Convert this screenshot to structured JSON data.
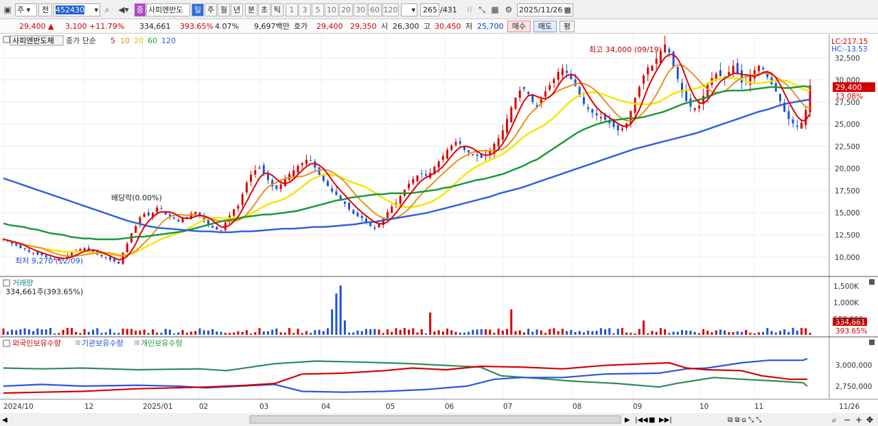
{
  "toolbar": {
    "market": "주",
    "type": "전",
    "code": "452430",
    "name": "사피엔반도",
    "name_badge": "종",
    "periods": [
      "일",
      "주",
      "월",
      "년",
      "분",
      "초",
      "틱"
    ],
    "counts": [
      "1",
      "3",
      "5",
      "10",
      "20",
      "30",
      "60",
      "120"
    ],
    "view_count": "265",
    "total_count": "/431",
    "date": "2025/11/26"
  },
  "quote": {
    "price": "29,400",
    "change": "3,100",
    "change_pct": "+11.79%",
    "volume": "334,661",
    "vol_ratio": "393.65%",
    "turnover": "4.07%",
    "amount": "9,697백만",
    "hoga_label": "호가",
    "ask": "29,400",
    "bid": "29,350",
    "open_label": "시",
    "open": "26,300",
    "high_label": "고",
    "high": "30,450",
    "low_label": "저",
    "low": "25,700",
    "buy": "매수",
    "sell": "매도",
    "eval": "평"
  },
  "price_panel": {
    "title": "사피엔반도체",
    "ma_label": "종가 단순",
    "ma": [
      "5",
      "10",
      "20",
      "60",
      "120"
    ],
    "lc": "LC:217.15",
    "hc": "HC:-13.53",
    "cur_price": "29,400",
    "cur_pct": "13.08%",
    "max_label": "최고 34,000 (09/19)",
    "min_label": "최저 9,270 (12/09)",
    "dividend": "배당락(0.00%)"
  },
  "vol_panel": {
    "title": "거래량",
    "subtitle": "334,661주(393.65%)",
    "cur": "334,661",
    "pct": "393.65%"
  },
  "own_panel": {
    "t1": "외국인보유수량",
    "t2": "기관보유수량",
    "t3": "개인보유수량"
  },
  "colors": {
    "ma5": "#e00000",
    "ma10": "#e8901a",
    "ma20": "#f5e600",
    "ma60": "#1a9a3a",
    "ma120": "#3060e0",
    "up": "#d40000",
    "down": "#1f50d8"
  },
  "chart_data": {
    "type": "candlestick",
    "y_axis": {
      "ticks": [
        "32,500",
        "30,000",
        "27,500",
        "25,000",
        "22,500",
        "20,000",
        "17,500",
        "15,000",
        "12,500",
        "10,000"
      ],
      "range": [
        8200,
        35000
      ]
    },
    "x_axis": {
      "labels": [
        "2024/10",
        "12",
        "2025/01",
        "02",
        "03",
        "04",
        "05",
        "06",
        "07",
        "08",
        "09",
        "10",
        "11",
        "11/26"
      ]
    },
    "close": [
      12000,
      11800,
      11500,
      11300,
      11000,
      10900,
      10600,
      10500,
      10300,
      10200,
      10000,
      9900,
      9700,
      9800,
      9900,
      10200,
      10500,
      10700,
      10900,
      11000,
      10800,
      10600,
      10300,
      10100,
      9900,
      9700,
      9500,
      9270,
      10500,
      11500,
      12700,
      13500,
      14500,
      14900,
      14700,
      15000,
      15600,
      15400,
      14800,
      14600,
      14300,
      14000,
      14400,
      14500,
      14900,
      15100,
      14700,
      14000,
      13600,
      13300,
      13100,
      13000,
      13900,
      14700,
      15400,
      15800,
      17100,
      18400,
      19300,
      19800,
      20100,
      19500,
      18700,
      18000,
      17700,
      18200,
      18900,
      19400,
      19800,
      20300,
      20600,
      21000,
      20900,
      20100,
      19300,
      18600,
      18000,
      17400,
      17000,
      16500,
      16000,
      15400,
      14900,
      14600,
      14400,
      14000,
      13500,
      13200,
      13700,
      14400,
      15100,
      15700,
      16100,
      16900,
      17600,
      18300,
      18800,
      19200,
      19400,
      19200,
      19500,
      20200,
      20800,
      21400,
      22100,
      22600,
      23000,
      22800,
      22100,
      21800,
      21600,
      21400,
      21200,
      21500,
      22000,
      22800,
      23400,
      24300,
      25600,
      26900,
      28000,
      28800,
      29000,
      28400,
      27500,
      27000,
      27800,
      28700,
      29400,
      30100,
      30900,
      31300,
      30800,
      30100,
      29300,
      28100,
      27300,
      26700,
      26300,
      26000,
      25800,
      25500,
      25100,
      24700,
      24300,
      24500,
      25100,
      26500,
      28000,
      29200,
      30500,
      31400,
      31600,
      32400,
      33300,
      34000,
      33100,
      31500,
      30100,
      28600,
      27600,
      27000,
      26800,
      27100,
      28200,
      29600,
      30200,
      30700,
      30400,
      30100,
      30900,
      31600,
      30800,
      29700,
      29900,
      30500,
      31100,
      31600,
      31200,
      30300,
      29500,
      28700,
      27600,
      26400,
      25600,
      25100,
      24700,
      25200,
      26600,
      29400
    ],
    "ma60": [
      13800,
      13600,
      13500,
      13400,
      13200,
      13100,
      12900,
      12700,
      12600,
      12500,
      12300,
      12200,
      12100,
      12100,
      12000,
      12000,
      12000,
      12000,
      12100,
      12200,
      12300,
      12300,
      12400,
      12500,
      12600,
      12700,
      12800,
      12900,
      13100,
      13300,
      13500,
      13700,
      13900,
      14100,
      14200,
      14300,
      14500,
      14600,
      14700,
      14800,
      14800,
      14900,
      15000,
      15100,
      15200,
      15400,
      15600,
      15800,
      16000,
      16200,
      16400,
      16500,
      16700,
      16800,
      16900,
      17000,
      17100,
      17100,
      17200,
      17200,
      17200,
      17200,
      17300,
      17400,
      17500,
      17600,
      17800,
      17900,
      18100,
      18300,
      18500,
      18700,
      18800,
      19000,
      19200,
      19400,
      19700,
      20000,
      20300,
      20700,
      21000,
      21500,
      22000,
      22500,
      23000,
      23500,
      24000,
      24400,
      24700,
      25000,
      25200,
      25400,
      25500,
      25600,
      25700,
      25700,
      25800,
      26000,
      26200,
      26400,
      26700,
      27000,
      27300,
      27500,
      27700,
      27900,
      28200,
      28500,
      28700,
      28800,
      28800,
      28800,
      28900,
      29000,
      29100,
      29200,
      29200,
      29100,
      29100,
      29200,
      29300,
      29200
    ],
    "ma120": [
      18900,
      18500,
      18100,
      17700,
      17300,
      16900,
      16500,
      16100,
      15700,
      15300,
      14900,
      14500,
      14100,
      13800,
      13500,
      13300,
      13200,
      13100,
      13000,
      12900,
      12900,
      12800,
      12800,
      12900,
      12900,
      13000,
      13100,
      13200,
      13200,
      13300,
      13400,
      13400,
      13500,
      13600,
      13700,
      13900,
      14000,
      14200,
      14400,
      14600,
      14800,
      15000,
      15300,
      15600,
      15900,
      16200,
      16500,
      16800,
      17200,
      17500,
      17800,
      18200,
      18600,
      19000,
      19400,
      19800,
      20200,
      20600,
      21000,
      21400,
      21800,
      22200,
      22500,
      22800,
      23100,
      23400,
      23700,
      24000,
      24400,
      24800,
      25200,
      25600,
      26000,
      26400,
      26700,
      27100,
      27400,
      27600,
      27800
    ]
  }
}
